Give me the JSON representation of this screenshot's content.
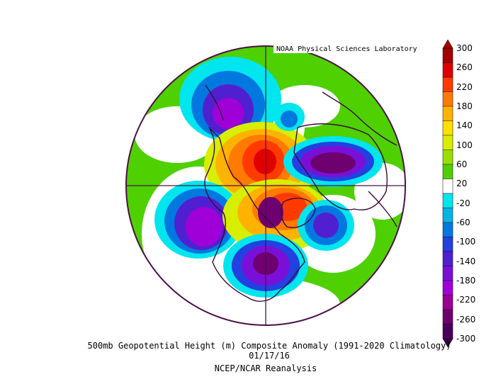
{
  "header": {
    "credit": "NOAA Physical Sciences Laboratory"
  },
  "caption": {
    "line1": "500mb Geopotential Height (m) Composite Anomaly (1991-2020 Climatology)",
    "line2": "01/17/16",
    "line3": "NCEP/NCAR Reanalysis"
  },
  "colorbar": {
    "labels": [
      "300",
      "260",
      "220",
      "180",
      "140",
      "100",
      "60",
      "20",
      "-20",
      "-60",
      "-100",
      "-140",
      "-180",
      "-220",
      "-260",
      "-300"
    ],
    "colors": [
      "#a50000",
      "#e00000",
      "#ff3a00",
      "#ff7a00",
      "#ffb300",
      "#ffdf00",
      "#d8ee00",
      "#9ade00",
      "#4fd000",
      "#ffffff",
      "#00e5ee",
      "#00b4e6",
      "#0078e0",
      "#2340e0",
      "#5020d0",
      "#7a10d8",
      "#a000d8",
      "#9a0090",
      "#6e0070",
      "#4a0058"
    ],
    "arrow_top_color": "#a50000",
    "arrow_bottom_color": "#3c004c"
  },
  "map": {
    "ocean_color": "#4fd000",
    "boundary_color": "#4b1048",
    "anomalies": [
      {
        "id": "greenland-high",
        "sign": "positive",
        "peak_m": 300
      },
      {
        "id": "siberia-low",
        "sign": "negative",
        "peak_m": -300
      },
      {
        "id": "north-pacific-low",
        "sign": "negative",
        "peak_m": -240
      },
      {
        "id": "eastern-us-low",
        "sign": "negative",
        "peak_m": -260
      },
      {
        "id": "north-atlantic-low",
        "sign": "negative",
        "peak_m": -160
      },
      {
        "id": "scandinavia-low",
        "sign": "negative",
        "peak_m": -200
      },
      {
        "id": "arctic-high",
        "sign": "positive",
        "peak_m": 240
      }
    ]
  }
}
